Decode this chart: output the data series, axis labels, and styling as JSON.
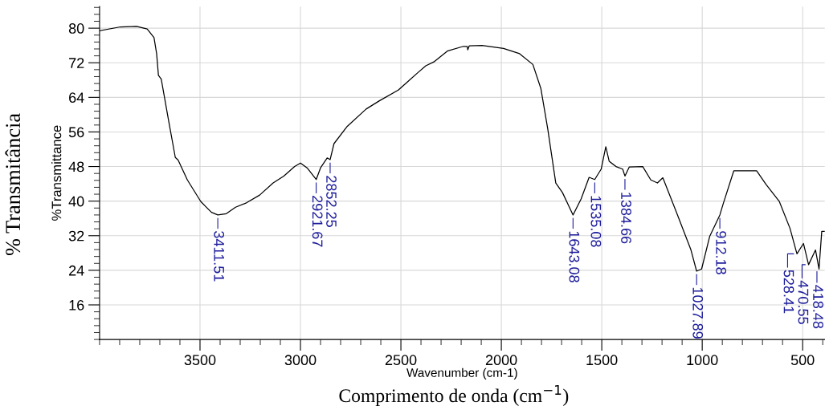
{
  "chart_data": {
    "type": "line",
    "xlabel": "Wavenumber (cm-1)",
    "ylabel": "%Transmittance",
    "xlim": [
      4000,
      390
    ],
    "xticks": [
      3500,
      3000,
      2500,
      2000,
      1500,
      1000,
      500
    ],
    "ylim": [
      8,
      85
    ],
    "yticks": [
      16,
      24,
      32,
      40,
      48,
      56,
      64,
      72,
      80
    ],
    "grid": true,
    "legend": false,
    "marker": "none",
    "line_style": "solid",
    "series": [
      {
        "color": "#000000",
        "x": [
          4000,
          3896,
          3816,
          3763,
          3729,
          3716,
          3707,
          3693,
          3656,
          3623,
          3609,
          3563,
          3496,
          3443,
          3411.51,
          3369,
          3323,
          3269,
          3203,
          3136,
          3083,
          3029,
          3000,
          2967,
          2921.67,
          2900,
          2867,
          2852.25,
          2833,
          2767,
          2673,
          2607,
          2513,
          2416,
          2376,
          2336,
          2269,
          2189,
          2170,
          2167,
          2160,
          2096,
          1989,
          1909,
          1843,
          1803,
          1769,
          1729,
          1696,
          1643.08,
          1603,
          1563,
          1535.08,
          1503,
          1480,
          1463,
          1429,
          1396,
          1384.66,
          1363,
          1296,
          1256,
          1223,
          1196,
          1123,
          1056,
          1027.89,
          1003,
          963,
          912.18,
          896,
          843,
          763,
          729,
          683,
          616,
          563,
          528.41,
          496,
          470.55,
          436,
          418.48,
          405,
          390
        ],
        "values": [
          79.4,
          80.3,
          80.4,
          79.8,
          77.8,
          74.1,
          69.1,
          68.2,
          58.5,
          50.1,
          49.5,
          44.9,
          39.9,
          37.4,
          36.8,
          37.1,
          38.6,
          39.6,
          41.4,
          44.2,
          45.8,
          48.0,
          48.8,
          47.7,
          45.0,
          47.7,
          50.0,
          49.6,
          53.3,
          57.3,
          61.3,
          63.2,
          65.7,
          69.7,
          71.3,
          72.2,
          74.7,
          75.8,
          75.8,
          75.0,
          75.9,
          76.0,
          75.3,
          74.1,
          71.6,
          66.0,
          56.7,
          44.2,
          42.0,
          36.8,
          40.5,
          45.5,
          45.0,
          47.4,
          52.6,
          49.2,
          48.0,
          47.4,
          45.8,
          47.9,
          48.0,
          44.9,
          44.2,
          45.4,
          36.8,
          28.7,
          23.8,
          24.3,
          31.8,
          36.8,
          39.3,
          47.0,
          47.0,
          47.0,
          43.9,
          39.9,
          33.7,
          27.8,
          30.2,
          25.3,
          28.7,
          24.3,
          33.0,
          33.0
        ]
      }
    ],
    "annotations": [
      "% Transmitância",
      "Comprimento de onda (cm$^{−1}$)",
      {
        "text": "3411.51",
        "x": 3411.51,
        "y": 36.8
      },
      {
        "text": "2921.67",
        "x": 2921.67,
        "y": 45.0
      },
      {
        "text": "2852.25",
        "x": 2852.25,
        "y": 49.6
      },
      {
        "text": "1643.08",
        "x": 1643.08,
        "y": 36.8
      },
      {
        "text": "1535.08",
        "x": 1535.08,
        "y": 45.0
      },
      {
        "text": "1384.66",
        "x": 1384.66,
        "y": 45.8
      },
      {
        "text": "1027.89",
        "x": 1027.89,
        "y": 23.8
      },
      {
        "text": "912.18",
        "x": 912.18,
        "y": 36.8
      },
      {
        "text": "528.41",
        "x": 528.41,
        "y": 27.8
      },
      {
        "text": "470.55",
        "x": 470.55,
        "y": 25.3
      },
      {
        "text": "418.48",
        "x": 418.48,
        "y": 24.3
      }
    ]
  }
}
